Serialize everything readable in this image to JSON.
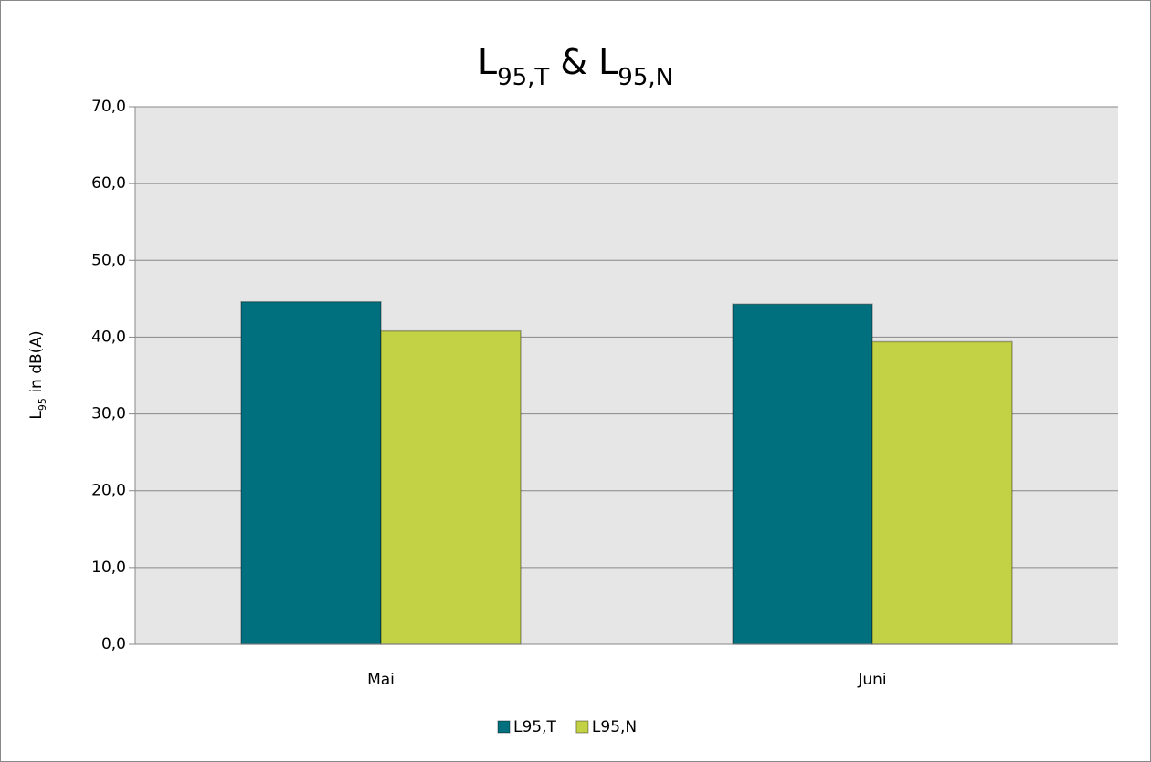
{
  "chart_data": {
    "type": "bar",
    "title": [
      "L",
      "95,T",
      " & L",
      "95,N"
    ],
    "y_label": [
      "L",
      "95",
      " in dB(A)"
    ],
    "categories": [
      "Mai",
      "Juni"
    ],
    "series": [
      {
        "name": "L95,T",
        "color": "#00707f",
        "values": [
          44.6,
          44.3
        ]
      },
      {
        "name": "L95,N",
        "color": "#c3d145",
        "values": [
          40.8,
          39.4
        ]
      }
    ],
    "ylim": [
      0,
      70
    ],
    "yticks": [
      {
        "value": 0,
        "label": "0,0"
      },
      {
        "value": 10,
        "label": "10,0"
      },
      {
        "value": 20,
        "label": "20,0"
      },
      {
        "value": 30,
        "label": "30,0"
      },
      {
        "value": 40,
        "label": "40,0"
      },
      {
        "value": 50,
        "label": "50,0"
      },
      {
        "value": 60,
        "label": "60,0"
      },
      {
        "value": 70,
        "label": "70,0"
      }
    ],
    "grid": true,
    "legend": "bottom"
  }
}
